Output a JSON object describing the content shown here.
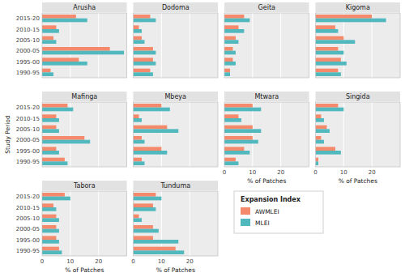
{
  "chart_data": [
    {
      "type": "bar",
      "orientation": "horizontal",
      "title": "Arusha",
      "categories": [
        "2015-20",
        "2010-15",
        "2005-10",
        "2000-05",
        "1995-00",
        "1990-95"
      ],
      "series": [
        {
          "name": "AWMLEI",
          "color": "#F4896B",
          "values": [
            12,
            5,
            4,
            24,
            13,
            3
          ]
        },
        {
          "name": "MLEI",
          "color": "#51B8BE",
          "values": [
            16,
            6,
            5,
            29,
            16,
            4
          ]
        }
      ],
      "xlim": [
        0,
        30
      ],
      "xticks": [
        0,
        10,
        20
      ],
      "grid": true,
      "tick_labels": "y"
    },
    {
      "type": "bar",
      "orientation": "horizontal",
      "title": "Dodoma",
      "categories": [
        "2015-20",
        "2010-15",
        "2005-10",
        "2000-05",
        "1995-00",
        "1990-95"
      ],
      "series": [
        {
          "name": "AWMLEI",
          "color": "#F4896B",
          "values": [
            6,
            2,
            3,
            7,
            7,
            6
          ]
        },
        {
          "name": "MLEI",
          "color": "#51B8BE",
          "values": [
            8,
            3,
            4,
            8,
            8,
            7
          ]
        }
      ],
      "xlim": [
        0,
        30
      ],
      "xticks": [
        0,
        10,
        20
      ],
      "grid": true,
      "tick_labels": false
    },
    {
      "type": "bar",
      "orientation": "horizontal",
      "title": "Geita",
      "categories": [
        "2015-20",
        "2010-15",
        "2005-10",
        "2000-05",
        "1995-00",
        "1990-95"
      ],
      "series": [
        {
          "name": "AWMLEI",
          "color": "#F4896B",
          "values": [
            7,
            5,
            4,
            3,
            3,
            2
          ]
        },
        {
          "name": "MLEI",
          "color": "#51B8BE",
          "values": [
            9,
            7,
            5,
            4,
            4,
            2
          ]
        }
      ],
      "xlim": [
        0,
        30
      ],
      "xticks": [
        0,
        10,
        20
      ],
      "grid": true,
      "tick_labels": false
    },
    {
      "type": "bar",
      "orientation": "horizontal",
      "title": "Kigoma",
      "categories": [
        "2015-20",
        "2010-15",
        "2005-10",
        "2000-05",
        "1995-00",
        "1990-95"
      ],
      "series": [
        {
          "name": "AWMLEI",
          "color": "#F4896B",
          "values": [
            20,
            7,
            10,
            8,
            9,
            8
          ]
        },
        {
          "name": "MLEI",
          "color": "#51B8BE",
          "values": [
            25,
            8,
            14,
            10,
            11,
            9
          ]
        }
      ],
      "xlim": [
        0,
        30
      ],
      "xticks": [
        0,
        10,
        20
      ],
      "grid": true,
      "tick_labels": false
    },
    {
      "type": "bar",
      "orientation": "horizontal",
      "title": "Mafinga",
      "categories": [
        "2015-20",
        "2010-15",
        "2005-10",
        "2000-05",
        "1995-00",
        "1990-95"
      ],
      "series": [
        {
          "name": "AWMLEI",
          "color": "#F4896B",
          "values": [
            9,
            5,
            5,
            15,
            5,
            8
          ]
        },
        {
          "name": "MLEI",
          "color": "#51B8BE",
          "values": [
            11,
            6,
            6,
            17,
            6,
            9
          ]
        }
      ],
      "xlim": [
        0,
        30
      ],
      "xticks": [
        0,
        10,
        20
      ],
      "grid": true,
      "tick_labels": "y",
      "ylabel": "Study Period"
    },
    {
      "type": "bar",
      "orientation": "horizontal",
      "title": "Mbeya",
      "categories": [
        "2015-20",
        "2010-15",
        "2005-10",
        "2000-05",
        "1995-00",
        "1990-95"
      ],
      "series": [
        {
          "name": "AWMLEI",
          "color": "#F4896B",
          "values": [
            10,
            2,
            12,
            3,
            10,
            3
          ]
        },
        {
          "name": "MLEI",
          "color": "#51B8BE",
          "values": [
            13,
            3,
            16,
            4,
            12,
            4
          ]
        }
      ],
      "xlim": [
        0,
        30
      ],
      "xticks": [
        0,
        10,
        20
      ],
      "grid": true,
      "tick_labels": false
    },
    {
      "type": "bar",
      "orientation": "horizontal",
      "title": "Mtwara",
      "categories": [
        "2015-20",
        "2010-15",
        "2005-10",
        "2000-05",
        "1995-00",
        "1990-95"
      ],
      "series": [
        {
          "name": "AWMLEI",
          "color": "#F4896B",
          "values": [
            10,
            5,
            10,
            10,
            7,
            4
          ]
        },
        {
          "name": "MLEI",
          "color": "#51B8BE",
          "values": [
            13,
            6,
            13,
            12,
            9,
            5
          ]
        }
      ],
      "xlim": [
        0,
        30
      ],
      "xticks": [
        0,
        10,
        20
      ],
      "grid": true,
      "tick_labels": "x",
      "xlabel": "% of Patches"
    },
    {
      "type": "bar",
      "orientation": "horizontal",
      "title": "Singida",
      "categories": [
        "2015-20",
        "2010-15",
        "2005-10",
        "2000-05",
        "1995-00",
        "1990-95"
      ],
      "series": [
        {
          "name": "AWMLEI",
          "color": "#F4896B",
          "values": [
            8,
            2,
            4,
            2,
            7,
            1
          ]
        },
        {
          "name": "MLEI",
          "color": "#51B8BE",
          "values": [
            10,
            3,
            5,
            3,
            9,
            1
          ]
        }
      ],
      "xlim": [
        0,
        30
      ],
      "xticks": [
        0,
        10,
        20
      ],
      "grid": true,
      "tick_labels": "x",
      "xlabel": "% of Patches"
    },
    {
      "type": "bar",
      "orientation": "horizontal",
      "title": "Tabora",
      "categories": [
        "2015-20",
        "2010-15",
        "2005-10",
        "2000-05",
        "1995-00",
        "1990-95"
      ],
      "series": [
        {
          "name": "AWMLEI",
          "color": "#F4896B",
          "values": [
            8,
            4,
            5,
            5,
            5,
            6
          ]
        },
        {
          "name": "MLEI",
          "color": "#51B8BE",
          "values": [
            10,
            5,
            6,
            6,
            6,
            7
          ]
        }
      ],
      "xlim": [
        0,
        30
      ],
      "xticks": [
        0,
        10,
        20
      ],
      "grid": true,
      "xlabel": "% of Patches"
    },
    {
      "type": "bar",
      "orientation": "horizontal",
      "title": "Tunduma",
      "categories": [
        "2015-20",
        "2010-15",
        "2005-10",
        "2000-05",
        "1995-00",
        "1990-95"
      ],
      "series": [
        {
          "name": "AWMLEI",
          "color": "#F4896B",
          "values": [
            8,
            7,
            2,
            7,
            7,
            15
          ]
        },
        {
          "name": "MLEI",
          "color": "#51B8BE",
          "values": [
            10,
            8,
            3,
            9,
            16,
            18
          ]
        }
      ],
      "xlim": [
        0,
        30
      ],
      "xticks": [
        0,
        10,
        20
      ],
      "grid": true,
      "tick_labels": "x",
      "xlabel": "% of Patches",
      "legend": "right",
      "legend_title": "Expansion Index"
    }
  ]
}
